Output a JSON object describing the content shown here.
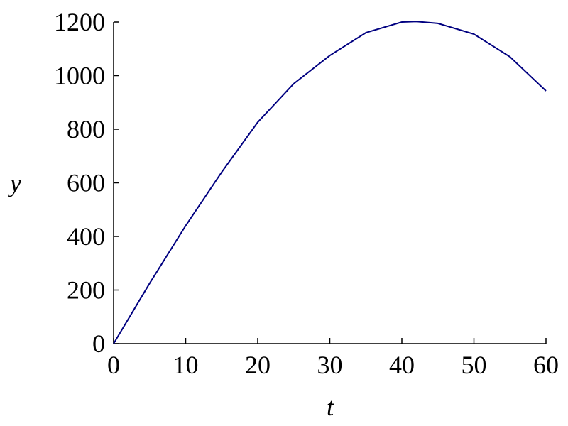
{
  "chart_data": {
    "type": "line",
    "x_label": "t",
    "y_label": "y",
    "series": [
      {
        "name": "y",
        "color": "#000080",
        "x": [
          0,
          5,
          10,
          15,
          20,
          25,
          30,
          35,
          40,
          42,
          45,
          50,
          55,
          60
        ],
        "values": [
          0,
          225,
          440,
          640,
          826,
          970,
          1075,
          1160,
          1200,
          1202,
          1195,
          1155,
          1070,
          943
        ]
      }
    ],
    "xlim": [
      0,
      60
    ],
    "xticks": [
      0,
      10,
      20,
      30,
      40,
      50,
      60
    ],
    "ylim": [
      0,
      1200
    ],
    "yticks": [
      0,
      200,
      400,
      600,
      800,
      1000,
      1200
    ],
    "grid": false
  }
}
